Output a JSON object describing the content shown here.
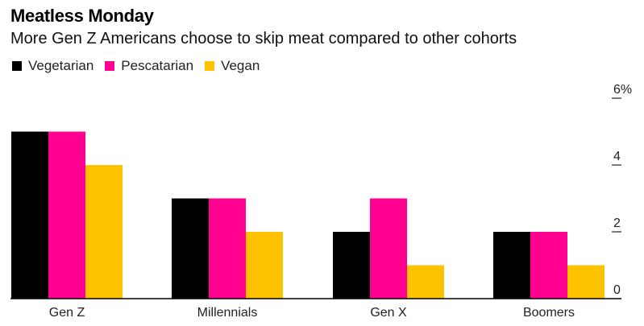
{
  "chart_data": {
    "type": "bar",
    "title": "Meatless Monday",
    "subtitle": "More Gen Z Americans choose to skip meat compared to other cohorts",
    "categories": [
      "Gen Z",
      "Millennials",
      "Gen X",
      "Boomers"
    ],
    "series": [
      {
        "name": "Vegetarian",
        "color": "#000000",
        "values": [
          5,
          3,
          2,
          2
        ]
      },
      {
        "name": "Pescatarian",
        "color": "#ff0090",
        "values": [
          5,
          3,
          3,
          2
        ]
      },
      {
        "name": "Vegan",
        "color": "#ffc200",
        "values": [
          4,
          2,
          1,
          1
        ]
      }
    ],
    "xlabel": "",
    "ylabel": "",
    "ylim": [
      0,
      6
    ],
    "yticks": [
      {
        "value": 6,
        "label": "6%"
      },
      {
        "value": 4,
        "label": "4"
      },
      {
        "value": 2,
        "label": "2"
      },
      {
        "value": 0,
        "label": "0"
      }
    ],
    "yaxis_position": "right",
    "grid": false,
    "legend_position": "top-left"
  }
}
